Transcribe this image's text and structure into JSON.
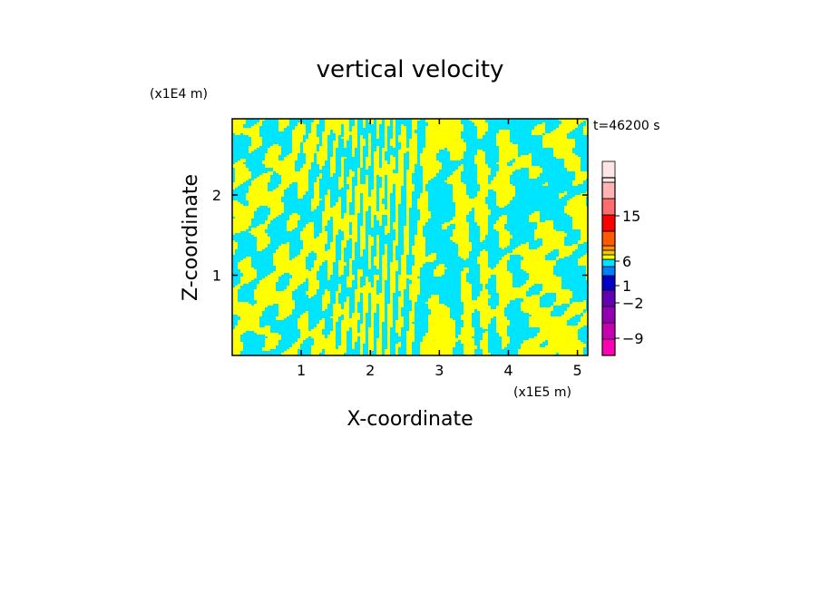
{
  "chart_data": {
    "type": "heatmap",
    "title": "vertical velocity",
    "xlabel": "X-coordinate",
    "ylabel": "Z-coordinate",
    "x_unit": "(x1E5 m)",
    "y_unit": "(x1E4 m)",
    "time_label": "t=46200 s",
    "xlim": [
      0,
      5.15
    ],
    "ylim": [
      0,
      2.95
    ],
    "x_ticks": [
      1,
      2,
      3,
      4,
      5
    ],
    "y_ticks": [
      1,
      2
    ],
    "field_colors": {
      "positive": "#ffff00",
      "negative": "#00e5ff"
    },
    "colorbar": {
      "levels": [
        {
          "color": "#ff00b4"
        },
        {
          "color": "#c800b4"
        },
        {
          "color": "#9600b4"
        },
        {
          "color": "#6400b4"
        },
        {
          "color": "#0000c8"
        },
        {
          "color": "#0080ff"
        },
        {
          "color": "#00e5ff"
        },
        {
          "color": "#ffff00"
        },
        {
          "color": "#f0c800"
        },
        {
          "color": "#ff8c00"
        },
        {
          "color": "#ff5a00"
        },
        {
          "color": "#ff0000"
        },
        {
          "color": "#ff6e6e"
        },
        {
          "color": "#ffb4b4"
        },
        {
          "color": "#ffe6e6"
        }
      ],
      "labels": [
        "15",
        "6",
        "1",
        "−2",
        "−9"
      ]
    }
  }
}
